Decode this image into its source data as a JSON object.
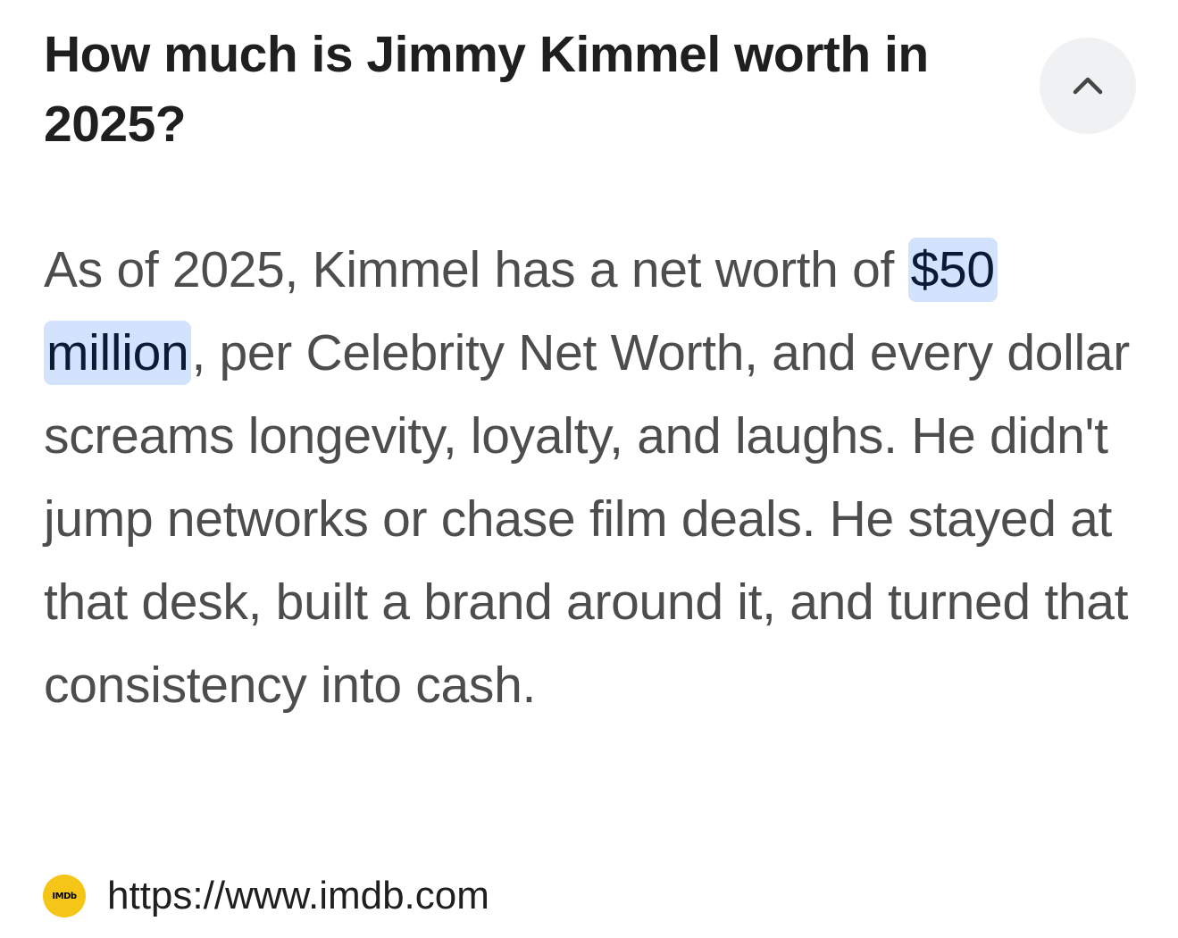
{
  "question": "How much is Jimmy Kimmel worth in 2025?",
  "collapse_icon": "chevron-up-icon",
  "answer": {
    "before": "As of 2025, Kimmel has a net worth of ",
    "highlight": "$50 million",
    "after": ", per Celebrity Net Worth, and every dollar screams longevity, loyalty, and laughs. He didn't jump networks or chase film deals. He stayed at that desk, built a brand around it, and turned that consistency into cash."
  },
  "source": {
    "favicon_text": "IMDb",
    "url": "https://www.imdb.com"
  },
  "colors": {
    "highlight_bg": "#d3e3fd",
    "favicon_bg": "#f5c518",
    "button_bg": "#f0f1f3"
  }
}
